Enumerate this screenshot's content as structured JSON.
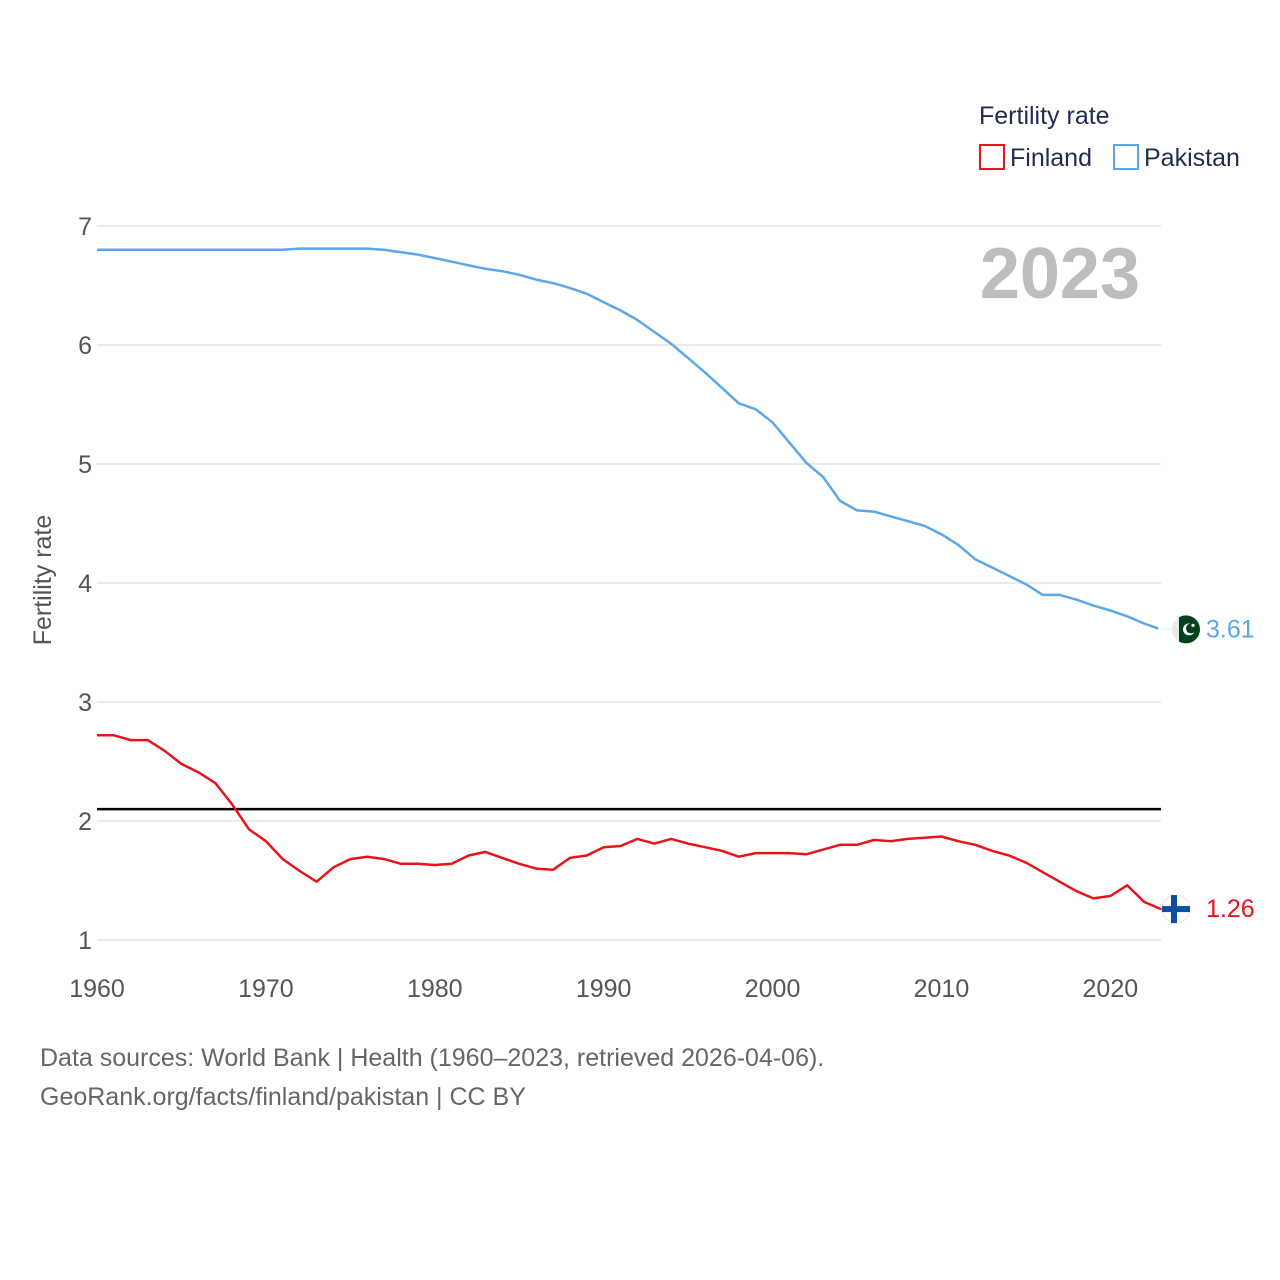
{
  "chart_data": {
    "type": "line",
    "title": "",
    "xlabel": "",
    "ylabel": "Fertility rate",
    "xlim": [
      1960,
      2023
    ],
    "ylim": [
      1,
      7
    ],
    "x_ticks": [
      "1960",
      "1970",
      "1980",
      "1990",
      "2000",
      "2010",
      "2020"
    ],
    "y_ticks": [
      "1",
      "2",
      "3",
      "4",
      "5",
      "6",
      "7"
    ],
    "current_year": "2023",
    "legend": {
      "title": "Fertility rate",
      "position": "top-right"
    },
    "reference_line": {
      "value": 2.1,
      "color": "#000000"
    },
    "x": [
      1960,
      1961,
      1962,
      1963,
      1964,
      1965,
      1966,
      1967,
      1968,
      1969,
      1970,
      1971,
      1972,
      1973,
      1974,
      1975,
      1976,
      1977,
      1978,
      1979,
      1980,
      1981,
      1982,
      1983,
      1984,
      1985,
      1986,
      1987,
      1988,
      1989,
      1990,
      1991,
      1992,
      1993,
      1994,
      1995,
      1996,
      1997,
      1998,
      1999,
      2000,
      2001,
      2002,
      2003,
      2004,
      2005,
      2006,
      2007,
      2008,
      2009,
      2010,
      2011,
      2012,
      2013,
      2014,
      2015,
      2016,
      2017,
      2018,
      2019,
      2020,
      2021,
      2022,
      2023
    ],
    "series": [
      {
        "name": "Finland",
        "color": "#e8141b",
        "end_label": "1.26",
        "flag": "finland-flag",
        "values": [
          2.72,
          2.72,
          2.68,
          2.68,
          2.59,
          2.48,
          2.41,
          2.32,
          2.14,
          1.93,
          1.83,
          1.68,
          1.58,
          1.49,
          1.61,
          1.68,
          1.7,
          1.68,
          1.64,
          1.64,
          1.63,
          1.64,
          1.71,
          1.74,
          1.69,
          1.64,
          1.6,
          1.59,
          1.69,
          1.71,
          1.78,
          1.79,
          1.85,
          1.81,
          1.85,
          1.81,
          1.78,
          1.75,
          1.7,
          1.73,
          1.73,
          1.73,
          1.72,
          1.76,
          1.8,
          1.8,
          1.84,
          1.83,
          1.85,
          1.86,
          1.87,
          1.83,
          1.8,
          1.75,
          1.71,
          1.65,
          1.57,
          1.49,
          1.41,
          1.35,
          1.37,
          1.46,
          1.32,
          1.26
        ]
      },
      {
        "name": "Pakistan",
        "color": "#5ba7e8",
        "end_label": "3.61",
        "flag": "pakistan-flag",
        "values": [
          6.8,
          6.8,
          6.8,
          6.8,
          6.8,
          6.8,
          6.8,
          6.8,
          6.8,
          6.8,
          6.8,
          6.8,
          6.81,
          6.81,
          6.81,
          6.81,
          6.81,
          6.8,
          6.78,
          6.76,
          6.73,
          6.7,
          6.67,
          6.64,
          6.62,
          6.59,
          6.55,
          6.52,
          6.48,
          6.43,
          6.36,
          6.29,
          6.21,
          6.11,
          6.01,
          5.89,
          5.77,
          5.64,
          5.51,
          5.46,
          5.35,
          5.18,
          5.01,
          4.89,
          4.69,
          4.61,
          4.6,
          4.56,
          4.52,
          4.48,
          4.41,
          4.32,
          4.2,
          4.13,
          4.06,
          3.99,
          3.9,
          3.9,
          3.86,
          3.81,
          3.77,
          3.72,
          3.66,
          3.61
        ]
      }
    ]
  },
  "source": {
    "line1": "Data sources: World Bank | Health (1960–2023, retrieved 2026-04-06).",
    "line2": "GeoRank.org/facts/finland/pakistan | CC BY"
  }
}
